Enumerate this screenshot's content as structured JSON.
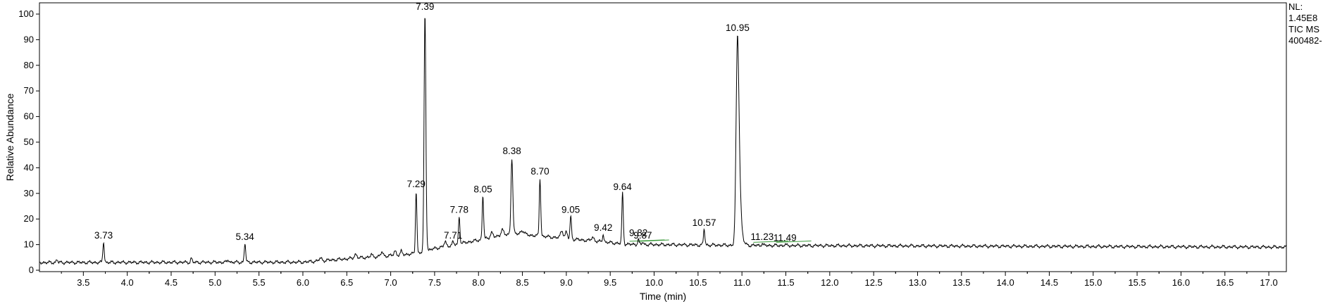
{
  "chart_data": {
    "type": "line",
    "xlabel": "Time (min)",
    "ylabel": "Relative Abundance",
    "xlim": [
      3.0,
      17.2
    ],
    "ylim": [
      0,
      100
    ],
    "x_ticks": [
      "3.5",
      "4.0",
      "4.5",
      "5.0",
      "5.5",
      "6.0",
      "6.5",
      "7.0",
      "7.5",
      "8.0",
      "8.5",
      "9.0",
      "9.5",
      "10.0",
      "10.5",
      "11.0",
      "11.5",
      "12.0",
      "12.5",
      "13.0",
      "13.5",
      "14.0",
      "14.5",
      "15.0",
      "15.5",
      "16.0",
      "16.5",
      "17.0"
    ],
    "y_ticks": [
      "0",
      "10",
      "20",
      "30",
      "40",
      "50",
      "60",
      "70",
      "80",
      "90",
      "100"
    ],
    "info": [
      "NL:",
      "1.45E8",
      "TIC MS",
      "400482-"
    ],
    "peaks": [
      {
        "rt": 3.73,
        "label": "3.73",
        "height": 11
      },
      {
        "rt": 5.34,
        "label": "5.34",
        "height": 10.5
      },
      {
        "rt": 7.29,
        "label": "7.29",
        "height": 31
      },
      {
        "rt": 7.39,
        "label": "7.39",
        "height": 100
      },
      {
        "rt": 7.71,
        "label": "7.71",
        "height": 11
      },
      {
        "rt": 7.78,
        "label": "7.78",
        "height": 21
      },
      {
        "rt": 8.05,
        "label": "8.05",
        "height": 29
      },
      {
        "rt": 8.38,
        "label": "8.38",
        "height": 44
      },
      {
        "rt": 8.7,
        "label": "8.70",
        "height": 36
      },
      {
        "rt": 9.05,
        "label": "9.05",
        "height": 21
      },
      {
        "rt": 9.42,
        "label": "9.42",
        "height": 14
      },
      {
        "rt": 9.64,
        "label": "9.64",
        "height": 30
      },
      {
        "rt": 9.82,
        "label": "9.82",
        "height": 12
      },
      {
        "rt": 9.87,
        "label": "9.87",
        "height": 11
      },
      {
        "rt": 10.57,
        "label": "10.57",
        "height": 16
      },
      {
        "rt": 10.95,
        "label": "10.95",
        "height": 92
      },
      {
        "rt": 11.23,
        "label": "11.23",
        "height": 10.5
      },
      {
        "rt": 11.49,
        "label": "11.49",
        "height": 10
      }
    ],
    "line_color": "#000000",
    "baseline_color": "#3a9a3a"
  }
}
